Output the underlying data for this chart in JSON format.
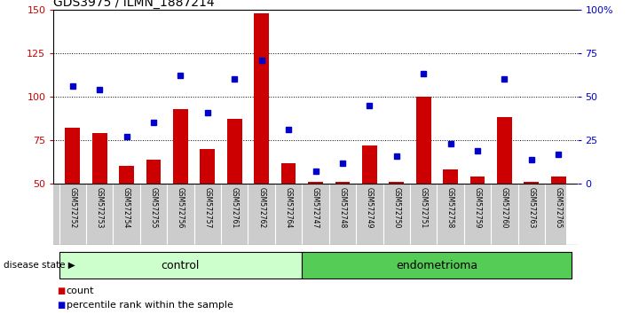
{
  "title": "GDS3975 / ILMN_1887214",
  "samples": [
    "GSM572752",
    "GSM572753",
    "GSM572754",
    "GSM572755",
    "GSM572756",
    "GSM572757",
    "GSM572761",
    "GSM572762",
    "GSM572764",
    "GSM572747",
    "GSM572748",
    "GSM572749",
    "GSM572750",
    "GSM572751",
    "GSM572758",
    "GSM572759",
    "GSM572760",
    "GSM572763",
    "GSM572765"
  ],
  "counts": [
    82,
    79,
    60,
    64,
    93,
    70,
    87,
    148,
    62,
    51,
    51,
    72,
    51,
    100,
    58,
    54,
    88,
    51,
    54
  ],
  "percentiles": [
    106,
    104,
    77,
    85,
    112,
    91,
    110,
    121,
    81,
    57,
    62,
    95,
    66,
    113,
    73,
    69,
    110,
    64,
    67
  ],
  "n_control": 9,
  "n_endometrioma": 10,
  "bar_color": "#cc0000",
  "dot_color": "#0000cc",
  "bg_color": "#ffffff",
  "ylim_left": [
    50,
    150
  ],
  "ylim_right": [
    0,
    100
  ],
  "yticks_left": [
    50,
    75,
    100,
    125,
    150
  ],
  "yticks_right": [
    0,
    25,
    50,
    75,
    100
  ],
  "ytick_labels_right": [
    "0",
    "25",
    "50",
    "75",
    "100%"
  ],
  "control_color": "#ccffcc",
  "endometrioma_color": "#55cc55",
  "label_row_color": "#cccccc",
  "legend_count_label": "count",
  "legend_pct_label": "percentile rank within the sample",
  "disease_state_label": "disease state",
  "control_label": "control",
  "endometrioma_label": "endometrioma"
}
